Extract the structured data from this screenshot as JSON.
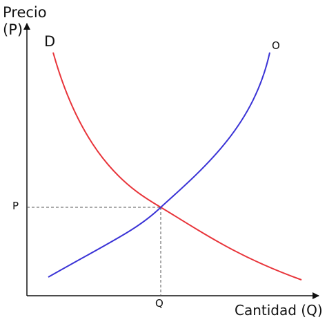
{
  "labels": {
    "y_axis_line1": "Precio",
    "y_axis_line2": "(P)",
    "x_axis": "Cantidad (Q)",
    "demand_curve": "D",
    "supply_curve": "O",
    "equilibrium_price": "P",
    "equilibrium_quantity": "Q"
  },
  "colors": {
    "demand": "#e8343a",
    "supply": "#3a33d6",
    "axes": "#111111",
    "guides": "#555555"
  }
}
